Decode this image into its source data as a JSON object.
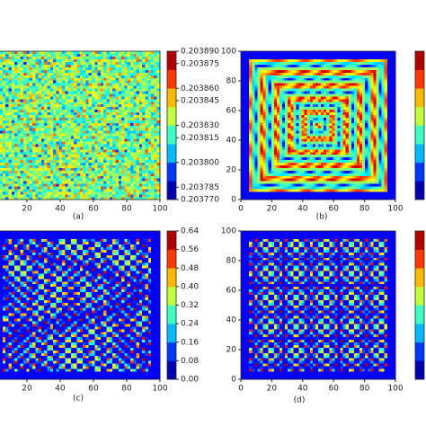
{
  "chart_data": [
    {
      "type": "heatmap",
      "caption": "(a)",
      "xlim": [
        0,
        100
      ],
      "ylim": [
        0,
        100
      ],
      "xticks": [
        20,
        40,
        60,
        80,
        100
      ],
      "colorbar": {
        "clim": [
          0.20377,
          0.20389
        ],
        "ticks": [
          {
            "value": 0.20377,
            "label": "0.203770"
          },
          {
            "value": 0.20378,
            "label": "0.203785"
          },
          {
            "value": 0.2038,
            "label": "0.203800"
          },
          {
            "value": 0.20382,
            "label": "0.203815"
          },
          {
            "value": 0.20383,
            "label": "0.203830"
          },
          {
            "value": 0.20385,
            "label": "0.203845"
          },
          {
            "value": 0.20386,
            "label": "0.203860"
          },
          {
            "value": 0.20388,
            "label": "0.203875"
          },
          {
            "value": 0.20389,
            "label": "0.203890"
          }
        ]
      }
    },
    {
      "type": "heatmap",
      "caption": "(b)",
      "xlim": [
        0,
        100
      ],
      "ylim": [
        0,
        100
      ],
      "xticks": [
        0,
        20,
        40,
        60,
        80,
        100
      ],
      "yticks": [
        0,
        20,
        40,
        60,
        80,
        100
      ]
    },
    {
      "type": "heatmap",
      "caption": "(c)",
      "xlim": [
        0,
        100
      ],
      "ylim": [
        0,
        100
      ],
      "xticks": [
        20,
        40,
        60,
        80,
        100
      ],
      "colorbar": {
        "clim": [
          0,
          0.64
        ],
        "ticks": [
          {
            "value": 0,
            "label": "0.00"
          },
          0.08,
          0.16,
          0.24,
          0.32,
          {
            "value": 0.4,
            "label": "0.40"
          },
          0.48,
          0.56,
          0.64
        ]
      }
    },
    {
      "type": "heatmap",
      "caption": "(d)",
      "xlim": [
        0,
        100
      ],
      "ylim": [
        0,
        100
      ],
      "xticks": [
        0,
        20,
        40,
        60,
        80,
        100
      ],
      "yticks": [
        0,
        20,
        40,
        60,
        80,
        100
      ]
    }
  ]
}
